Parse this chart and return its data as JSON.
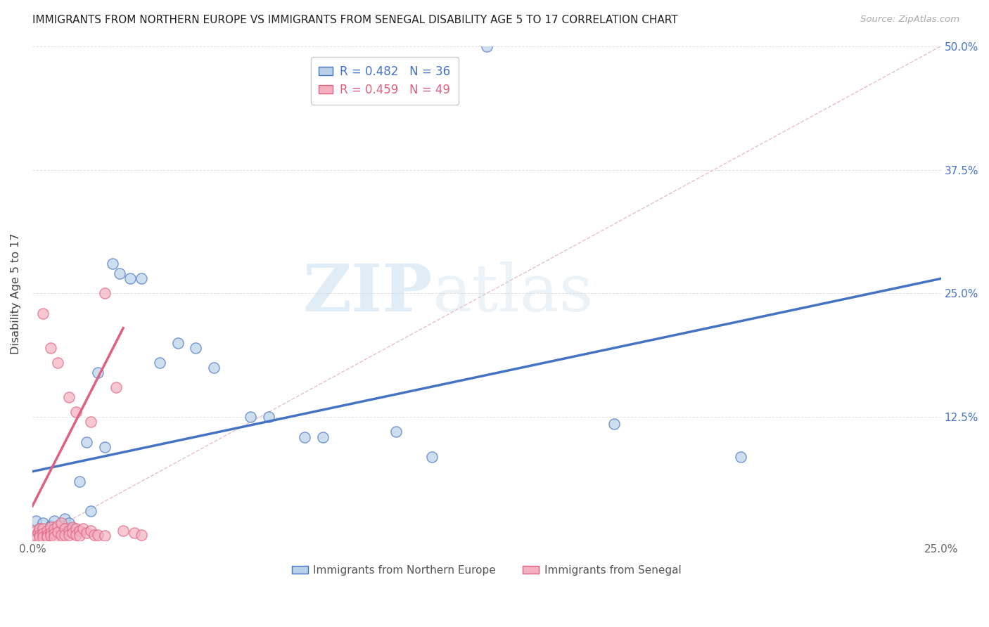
{
  "title": "IMMIGRANTS FROM NORTHERN EUROPE VS IMMIGRANTS FROM SENEGAL DISABILITY AGE 5 TO 17 CORRELATION CHART",
  "source": "Source: ZipAtlas.com",
  "ylabel": "Disability Age 5 to 17",
  "legend_label_blue": "Immigrants from Northern Europe",
  "legend_label_pink": "Immigrants from Senegal",
  "R_blue": 0.482,
  "N_blue": 36,
  "R_pink": 0.459,
  "N_pink": 49,
  "xlim": [
    0,
    0.25
  ],
  "ylim": [
    0,
    0.5
  ],
  "xticks": [
    0.0,
    0.05,
    0.1,
    0.15,
    0.2,
    0.25
  ],
  "yticks": [
    0.0,
    0.125,
    0.25,
    0.375,
    0.5
  ],
  "xtick_labels_show": [
    "0.0%",
    "",
    "",
    "",
    "",
    "25.0%"
  ],
  "ytick_labels_right": [
    "",
    "12.5%",
    "25.0%",
    "37.5%",
    "50.0%"
  ],
  "color_blue_fill": "#b8d0e8",
  "color_blue_edge": "#4472c4",
  "color_blue_line": "#4472c4",
  "color_pink_fill": "#f4b0c0",
  "color_pink_edge": "#e06080",
  "color_pink_line": "#e06080",
  "color_diagonal": "#e0b0b8",
  "watermark_zip": "ZIP",
  "watermark_atlas": "atlas",
  "blue_points": [
    [
      0.001,
      0.02
    ],
    [
      0.002,
      0.012
    ],
    [
      0.002,
      0.008
    ],
    [
      0.003,
      0.018
    ],
    [
      0.003,
      0.006
    ],
    [
      0.004,
      0.01
    ],
    [
      0.005,
      0.015
    ],
    [
      0.005,
      0.008
    ],
    [
      0.006,
      0.02
    ],
    [
      0.007,
      0.01
    ],
    [
      0.008,
      0.015
    ],
    [
      0.009,
      0.022
    ],
    [
      0.01,
      0.018
    ],
    [
      0.011,
      0.012
    ],
    [
      0.013,
      0.06
    ],
    [
      0.015,
      0.1
    ],
    [
      0.016,
      0.03
    ],
    [
      0.018,
      0.17
    ],
    [
      0.02,
      0.095
    ],
    [
      0.022,
      0.28
    ],
    [
      0.024,
      0.27
    ],
    [
      0.027,
      0.265
    ],
    [
      0.03,
      0.265
    ],
    [
      0.035,
      0.18
    ],
    [
      0.04,
      0.2
    ],
    [
      0.045,
      0.195
    ],
    [
      0.05,
      0.175
    ],
    [
      0.06,
      0.125
    ],
    [
      0.065,
      0.125
    ],
    [
      0.075,
      0.105
    ],
    [
      0.08,
      0.105
    ],
    [
      0.1,
      0.11
    ],
    [
      0.11,
      0.085
    ],
    [
      0.125,
      0.5
    ],
    [
      0.16,
      0.118
    ],
    [
      0.195,
      0.085
    ]
  ],
  "pink_points": [
    [
      0.001,
      0.01
    ],
    [
      0.001,
      0.005
    ],
    [
      0.0015,
      0.008
    ],
    [
      0.002,
      0.012
    ],
    [
      0.002,
      0.006
    ],
    [
      0.002,
      0.004
    ],
    [
      0.003,
      0.012
    ],
    [
      0.003,
      0.007
    ],
    [
      0.003,
      0.004
    ],
    [
      0.004,
      0.01
    ],
    [
      0.004,
      0.006
    ],
    [
      0.004,
      0.004
    ],
    [
      0.005,
      0.014
    ],
    [
      0.005,
      0.008
    ],
    [
      0.005,
      0.005
    ],
    [
      0.006,
      0.012
    ],
    [
      0.006,
      0.007
    ],
    [
      0.006,
      0.004
    ],
    [
      0.007,
      0.015
    ],
    [
      0.007,
      0.009
    ],
    [
      0.008,
      0.018
    ],
    [
      0.008,
      0.006
    ],
    [
      0.009,
      0.012
    ],
    [
      0.009,
      0.006
    ],
    [
      0.01,
      0.01
    ],
    [
      0.01,
      0.006
    ],
    [
      0.011,
      0.014
    ],
    [
      0.011,
      0.008
    ],
    [
      0.012,
      0.012
    ],
    [
      0.012,
      0.006
    ],
    [
      0.013,
      0.01
    ],
    [
      0.013,
      0.005
    ],
    [
      0.014,
      0.012
    ],
    [
      0.015,
      0.008
    ],
    [
      0.016,
      0.01
    ],
    [
      0.017,
      0.006
    ],
    [
      0.003,
      0.23
    ],
    [
      0.005,
      0.195
    ],
    [
      0.007,
      0.18
    ],
    [
      0.01,
      0.145
    ],
    [
      0.012,
      0.13
    ],
    [
      0.016,
      0.12
    ],
    [
      0.02,
      0.25
    ],
    [
      0.023,
      0.155
    ],
    [
      0.025,
      0.01
    ],
    [
      0.028,
      0.008
    ],
    [
      0.03,
      0.006
    ],
    [
      0.018,
      0.006
    ],
    [
      0.02,
      0.005
    ]
  ],
  "blue_trend_x": [
    0.0,
    0.25
  ],
  "blue_trend_y": [
    0.07,
    0.265
  ],
  "pink_trend_x": [
    0.0,
    0.025
  ],
  "pink_trend_y": [
    0.035,
    0.215
  ]
}
